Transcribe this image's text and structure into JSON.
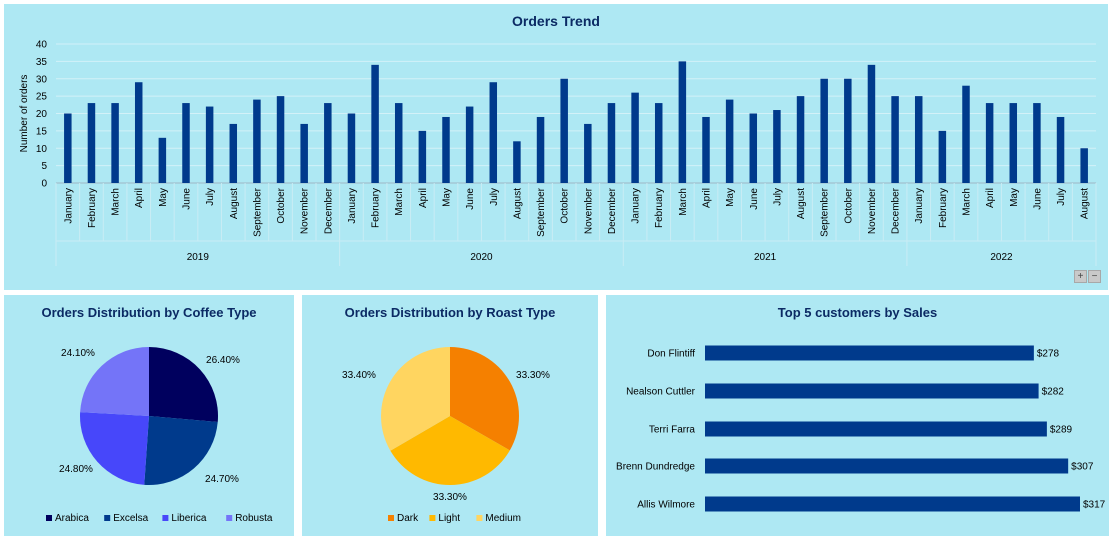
{
  "colors": {
    "panel_bg": "#aee8f3",
    "bar": "#003a8c",
    "title": "#0b2a64"
  },
  "zoom_controls": {
    "plus": "+",
    "minus": "−"
  },
  "chart_data": [
    {
      "id": "orders_trend",
      "type": "bar",
      "title": "Orders Trend",
      "ylabel": "Number of orders",
      "ylim": [
        0,
        40
      ],
      "yticks": [
        0,
        5,
        10,
        15,
        20,
        25,
        30,
        35,
        40
      ],
      "grid": true,
      "groups": [
        {
          "label": "2019",
          "months": [
            "January",
            "February",
            "March",
            "April",
            "May",
            "June",
            "July",
            "August",
            "September",
            "October",
            "November",
            "December"
          ],
          "values": [
            20,
            23,
            23,
            29,
            13,
            23,
            22,
            17,
            24,
            25,
            17,
            23
          ]
        },
        {
          "label": "2020",
          "months": [
            "January",
            "February",
            "March",
            "April",
            "May",
            "June",
            "July",
            "August",
            "September",
            "October",
            "November",
            "December"
          ],
          "values": [
            20,
            34,
            23,
            15,
            19,
            22,
            29,
            12,
            19,
            30,
            17,
            23
          ]
        },
        {
          "label": "2021",
          "months": [
            "January",
            "February",
            "March",
            "April",
            "May",
            "June",
            "July",
            "August",
            "September",
            "October",
            "November",
            "December"
          ],
          "values": [
            26,
            23,
            35,
            19,
            24,
            20,
            21,
            25,
            30,
            30,
            34,
            25
          ]
        },
        {
          "label": "2022",
          "months": [
            "January",
            "February",
            "March",
            "April",
            "May",
            "June",
            "July",
            "August"
          ],
          "values": [
            25,
            15,
            28,
            23,
            23,
            23,
            19,
            10
          ]
        }
      ]
    },
    {
      "id": "coffee_type",
      "type": "pie",
      "title": "Orders Distribution by Coffee Type",
      "legend_position": "bottom",
      "slices": [
        {
          "label": "Arabica",
          "value": 26.4,
          "text": "26.40%",
          "color": "#00005e"
        },
        {
          "label": "Excelsa",
          "value": 24.7,
          "text": "24.70%",
          "color": "#003a8c"
        },
        {
          "label": "Liberica",
          "value": 24.8,
          "text": "24.80%",
          "color": "#4747fa"
        },
        {
          "label": "Robusta",
          "value": 24.1,
          "text": "24.10%",
          "color": "#7474f8"
        }
      ]
    },
    {
      "id": "roast_type",
      "type": "pie",
      "title": "Orders Distribution by Roast Type",
      "legend_position": "bottom",
      "slices": [
        {
          "label": "Dark",
          "value": 33.3,
          "text": "33.30%",
          "color": "#f58000"
        },
        {
          "label": "Light",
          "value": 33.3,
          "text": "33.30%",
          "color": "#ffb900"
        },
        {
          "label": "Medium",
          "value": 33.4,
          "text": "33.40%",
          "color": "#ffd560"
        }
      ]
    },
    {
      "id": "top_customers",
      "type": "bar",
      "orientation": "horizontal",
      "title": "Top 5 customers by Sales",
      "categories": [
        "Don Flintiff",
        "Nealson Cuttler",
        "Terri Farra",
        "Brenn Dundredge",
        "Allis Wilmore"
      ],
      "values": [
        278,
        282,
        289,
        307,
        317
      ],
      "labels": [
        "$278",
        "$282",
        "$289",
        "$307",
        "$317"
      ]
    }
  ]
}
